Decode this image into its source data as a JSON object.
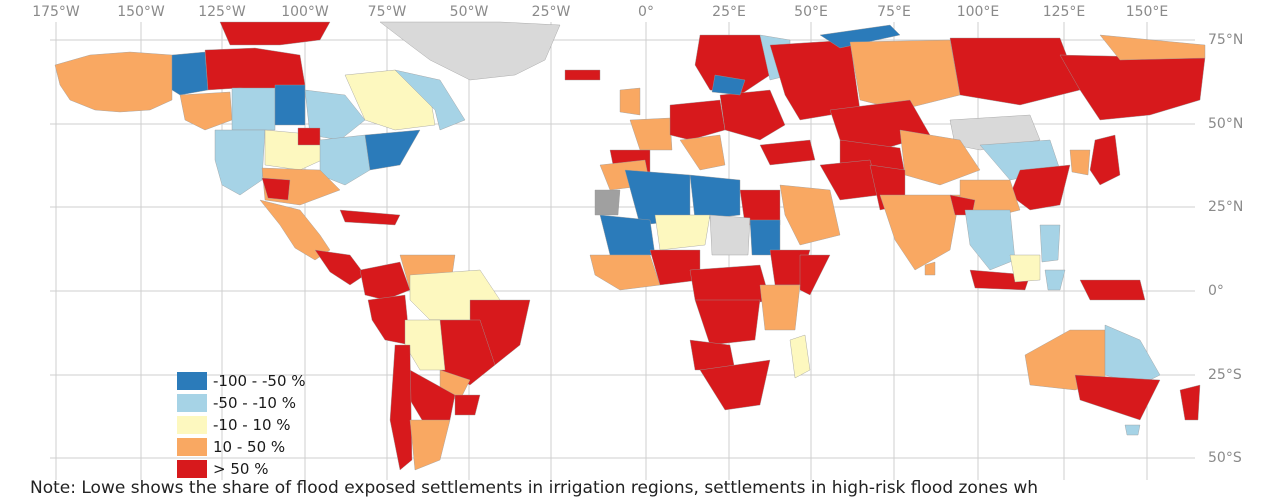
{
  "map": {
    "longitude_labels": [
      "175°W",
      "150°W",
      "125°W",
      "100°W",
      "75°W",
      "50°W",
      "25°W",
      "0°",
      "25°E",
      "50°E",
      "75°E",
      "100°E",
      "125°E",
      "150°E"
    ],
    "latitude_labels": [
      "75°N",
      "50°N",
      "25°N",
      "0°",
      "25°S",
      "50°S"
    ],
    "legend": [
      {
        "label": "-100 - -50 %",
        "color": "#2b7bba"
      },
      {
        "label": "-50 - -10 %",
        "color": "#a6d3e6"
      },
      {
        "label": "-10 - 10 %",
        "color": "#fdf8bf"
      },
      {
        "label": "10 - 50 %",
        "color": "#f9a862"
      },
      {
        "label": "> 50 %",
        "color": "#d7191c"
      }
    ],
    "no_data_color": "#d9d9d9",
    "note": "Note: Lowe shows the share of flood exposed settlements in irrigation regions, settlements in high-risk flood zones wh"
  }
}
